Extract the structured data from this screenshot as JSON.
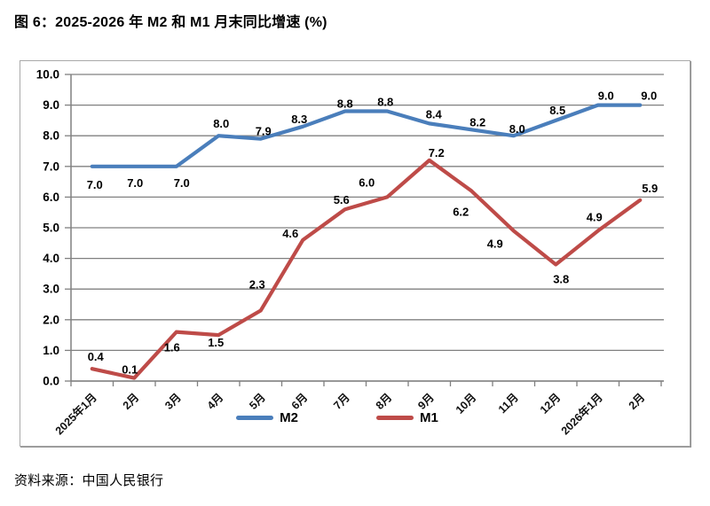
{
  "title": "图 6：2025-2026 年 M2 和 M1 月末同比增速 (%)",
  "source": "资料来源：中国人民银行",
  "colors": {
    "m2_line": "#4A7EBB",
    "m1_line": "#BE4B48",
    "gridline": "#808080",
    "axis": "#808080",
    "label_text": "#000000",
    "chart_border": "#A9A9A9"
  },
  "chart_data": {
    "type": "line",
    "title": "图 6：2025-2026 年 M2 和 M1 月末同比增速 (%)",
    "categories": [
      "2025年1月",
      "2月",
      "3月",
      "4月",
      "5月",
      "6月",
      "7月",
      "8月",
      "9月",
      "10月",
      "11月",
      "12月",
      "2026年1月",
      "2月"
    ],
    "series": [
      {
        "name": "M2",
        "color": "#4A7EBB",
        "values": [
          7.0,
          7.0,
          7.0,
          8.0,
          7.9,
          8.3,
          8.8,
          8.8,
          8.4,
          8.2,
          8.0,
          8.5,
          9.0,
          9.0
        ],
        "label_side": [
          "below",
          "below",
          "below",
          "above",
          "above",
          "above",
          "above",
          "above",
          "above",
          "above",
          "above",
          "above",
          "above",
          "above"
        ],
        "label_offset": [
          [
            3,
            4
          ],
          [
            1,
            2
          ],
          [
            6,
            2
          ],
          [
            3,
            0
          ],
          [
            3,
            5
          ],
          [
            -4,
            5
          ],
          [
            0,
            5
          ],
          [
            -2,
            3
          ],
          [
            5,
            3
          ],
          [
            7,
            5
          ],
          [
            4,
            6
          ],
          [
            2,
            2
          ],
          [
            9,
            3
          ],
          [
            10,
            3
          ]
        ]
      },
      {
        "name": "M1",
        "color": "#BE4B48",
        "values": [
          0.4,
          0.1,
          1.6,
          1.5,
          2.3,
          4.6,
          5.6,
          6.0,
          7.2,
          6.2,
          4.9,
          3.8,
          4.9,
          5.9
        ],
        "label_side": [
          "above",
          "above",
          "below",
          "below",
          "above",
          "above",
          "above",
          "above",
          "above",
          "below",
          "below",
          "below",
          "above",
          "above"
        ],
        "label_offset": [
          [
            4,
            0
          ],
          [
            -5,
            4
          ],
          [
            -5,
            1
          ],
          [
            -3,
            -8
          ],
          [
            -4,
            -16
          ],
          [
            -14,
            6
          ],
          [
            -4,
            3
          ],
          [
            -23,
            -3
          ],
          [
            8,
            5
          ],
          [
            -12,
            7
          ],
          [
            -21,
            -2
          ],
          [
            6,
            0
          ],
          [
            -4,
            -2
          ],
          [
            11,
            0
          ]
        ]
      }
    ],
    "xlabel": "",
    "ylabel": "",
    "ylim": [
      0,
      10
    ],
    "ytick_step": 1,
    "ytick_labels": [
      "0.0",
      "1.0",
      "2.0",
      "3.0",
      "4.0",
      "5.0",
      "6.0",
      "7.0",
      "8.0",
      "9.0",
      "10.0"
    ],
    "grid": true,
    "legend_position": "bottom",
    "legend_entries": [
      "M2",
      "M1"
    ]
  }
}
